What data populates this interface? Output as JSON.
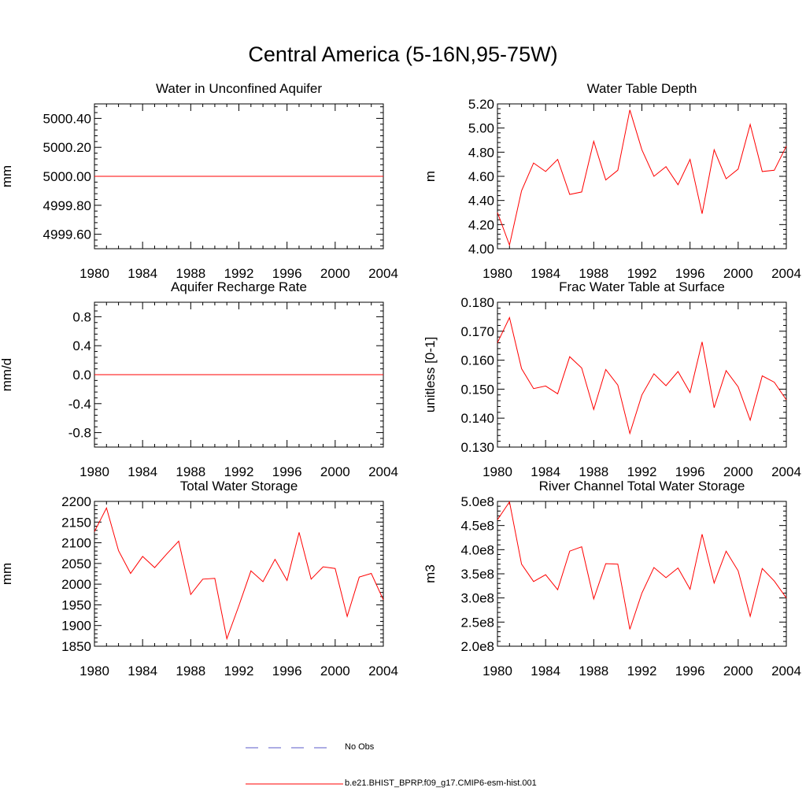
{
  "figure": {
    "title": "Central America (5-16N,95-75W)",
    "series_color": "#ff0000",
    "obs_color": "#5a5ac8"
  },
  "legend": {
    "obs_label": "No Obs",
    "model_label": "b.e21.BHIST_BPRP.f09_g17.CMIP6-esm-hist.001"
  },
  "chart_data": [
    {
      "type": "line",
      "title": "Water in Unconfined Aquifer",
      "xlabel": "",
      "ylabel": "mm",
      "xlim": [
        1980,
        2004
      ],
      "ylim": [
        4999.5,
        5000.5
      ],
      "xticks": [
        1980,
        1984,
        1988,
        1992,
        1996,
        2000,
        2004
      ],
      "xtick_labels": [
        "1980",
        "1984",
        "1988",
        "1992",
        "1996",
        "2000",
        "2004"
      ],
      "yticks": [
        4999.6,
        4999.8,
        5000.0,
        5000.2,
        5000.4
      ],
      "ytick_labels": [
        "4999.60",
        "4999.80",
        "5000.00",
        "5000.20",
        "5000.40"
      ],
      "x": [
        1980,
        1981,
        1982,
        1983,
        1984,
        1985,
        1986,
        1987,
        1988,
        1989,
        1990,
        1991,
        1992,
        1993,
        1994,
        1995,
        1996,
        1997,
        1998,
        1999,
        2000,
        2001,
        2002,
        2003,
        2004
      ],
      "values": [
        5000,
        5000,
        5000,
        5000,
        5000,
        5000,
        5000,
        5000,
        5000,
        5000,
        5000,
        5000,
        5000,
        5000,
        5000,
        5000,
        5000,
        5000,
        5000,
        5000,
        5000,
        5000,
        5000,
        5000,
        5000
      ]
    },
    {
      "type": "line",
      "title": "Water Table Depth",
      "xlabel": "",
      "ylabel": "m",
      "xlim": [
        1980,
        2004
      ],
      "ylim": [
        4.0,
        5.2
      ],
      "xticks": [
        1980,
        1984,
        1988,
        1992,
        1996,
        2000,
        2004
      ],
      "xtick_labels": [
        "1980",
        "1984",
        "1988",
        "1992",
        "1996",
        "2000",
        "2004"
      ],
      "yticks": [
        4.0,
        4.2,
        4.4,
        4.6,
        4.8,
        5.0,
        5.2
      ],
      "ytick_labels": [
        "4.00",
        "4.20",
        "4.40",
        "4.60",
        "4.80",
        "5.00",
        "5.20"
      ],
      "x": [
        1980,
        1981,
        1982,
        1983,
        1984,
        1985,
        1986,
        1987,
        1988,
        1989,
        1990,
        1991,
        1992,
        1993,
        1994,
        1995,
        1996,
        1997,
        1998,
        1999,
        2000,
        2001,
        2002,
        2003,
        2004
      ],
      "values": [
        4.3,
        4.03,
        4.48,
        4.71,
        4.64,
        4.74,
        4.45,
        4.47,
        4.89,
        4.57,
        4.65,
        5.15,
        4.82,
        4.6,
        4.68,
        4.53,
        4.74,
        4.29,
        4.82,
        4.58,
        4.66,
        5.03,
        4.64,
        4.65,
        4.85
      ]
    },
    {
      "type": "line",
      "title": "Aquifer Recharge Rate",
      "xlabel": "",
      "ylabel": "mm/d",
      "xlim": [
        1980,
        2004
      ],
      "ylim": [
        -1.0,
        1.0
      ],
      "xticks": [
        1980,
        1984,
        1988,
        1992,
        1996,
        2000,
        2004
      ],
      "xtick_labels": [
        "1980",
        "1984",
        "1988",
        "1992",
        "1996",
        "2000",
        "2004"
      ],
      "yticks": [
        -0.8,
        -0.4,
        0.0,
        0.4,
        0.8
      ],
      "ytick_labels": [
        "-0.8",
        "-0.4",
        "0.0",
        "0.4",
        "0.8"
      ],
      "x": [
        1980,
        1981,
        1982,
        1983,
        1984,
        1985,
        1986,
        1987,
        1988,
        1989,
        1990,
        1991,
        1992,
        1993,
        1994,
        1995,
        1996,
        1997,
        1998,
        1999,
        2000,
        2001,
        2002,
        2003,
        2004
      ],
      "values": [
        0,
        0,
        0,
        0,
        0,
        0,
        0,
        0,
        0,
        0,
        0,
        0,
        0,
        0,
        0,
        0,
        0,
        0,
        0,
        0,
        0,
        0,
        0,
        0,
        0
      ]
    },
    {
      "type": "line",
      "title": "Frac Water Table at Surface",
      "xlabel": "",
      "ylabel": "unitless [0-1]",
      "xlim": [
        1980,
        2004
      ],
      "ylim": [
        0.13,
        0.18
      ],
      "xticks": [
        1980,
        1984,
        1988,
        1992,
        1996,
        2000,
        2004
      ],
      "xtick_labels": [
        "1980",
        "1984",
        "1988",
        "1992",
        "1996",
        "2000",
        "2004"
      ],
      "yticks": [
        0.13,
        0.14,
        0.15,
        0.16,
        0.17,
        0.18
      ],
      "ytick_labels": [
        "0.130",
        "0.140",
        "0.150",
        "0.160",
        "0.170",
        "0.180"
      ],
      "x": [
        1980,
        1981,
        1982,
        1983,
        1984,
        1985,
        1986,
        1987,
        1988,
        1989,
        1990,
        1991,
        1992,
        1993,
        1994,
        1995,
        1996,
        1997,
        1998,
        1999,
        2000,
        2001,
        2002,
        2003,
        2004
      ],
      "values": [
        0.166,
        0.1747,
        0.1571,
        0.1502,
        0.1511,
        0.1484,
        0.1612,
        0.1573,
        0.143,
        0.1568,
        0.1514,
        0.1347,
        0.148,
        0.1553,
        0.1512,
        0.1561,
        0.1488,
        0.1663,
        0.1436,
        0.1564,
        0.1508,
        0.1393,
        0.1546,
        0.1524,
        0.1463
      ]
    },
    {
      "type": "line",
      "title": "Total Water Storage",
      "xlabel": "",
      "ylabel": "mm",
      "xlim": [
        1980,
        2004
      ],
      "ylim": [
        1850,
        2200
      ],
      "xticks": [
        1980,
        1984,
        1988,
        1992,
        1996,
        2000,
        2004
      ],
      "xtick_labels": [
        "1980",
        "1984",
        "1988",
        "1992",
        "1996",
        "2000",
        "2004"
      ],
      "yticks": [
        1850,
        1900,
        1950,
        2000,
        2050,
        2100,
        2150,
        2200
      ],
      "ytick_labels": [
        "1850",
        "1900",
        "1950",
        "2000",
        "2050",
        "2100",
        "2150",
        "2200"
      ],
      "x": [
        1980,
        1981,
        1982,
        1983,
        1984,
        1985,
        1986,
        1987,
        1988,
        1989,
        1990,
        1991,
        1992,
        1993,
        1994,
        1995,
        1996,
        1997,
        1998,
        1999,
        2000,
        2001,
        2002,
        2003,
        2004
      ],
      "values": [
        2127,
        2184,
        2081,
        2026,
        2067,
        2040,
        2073,
        2104,
        1975,
        2012,
        2014,
        1868,
        1948,
        2032,
        2006,
        2060,
        2009,
        2125,
        2012,
        2042,
        2038,
        1922,
        2017,
        2026,
        1962
      ]
    },
    {
      "type": "line",
      "title": "River Channel Total Water Storage",
      "xlabel": "",
      "ylabel": "m3",
      "xlim": [
        1980,
        2004
      ],
      "ylim": [
        200000000.0,
        500000000.0
      ],
      "xticks": [
        1980,
        1984,
        1988,
        1992,
        1996,
        2000,
        2004
      ],
      "xtick_labels": [
        "1980",
        "1984",
        "1988",
        "1992",
        "1996",
        "2000",
        "2004"
      ],
      "yticks": [
        200000000.0,
        250000000.0,
        300000000.0,
        350000000.0,
        400000000.0,
        450000000.0,
        500000000.0
      ],
      "ytick_labels": [
        "2.0e8",
        "2.5e8",
        "3.0e8",
        "3.5e8",
        "4.0e8",
        "4.5e8",
        "5.0e8"
      ],
      "x": [
        1980,
        1981,
        1982,
        1983,
        1984,
        1985,
        1986,
        1987,
        1988,
        1989,
        1990,
        1991,
        1992,
        1993,
        1994,
        1995,
        1996,
        1997,
        1998,
        1999,
        2000,
        2001,
        2002,
        2003,
        2004
      ],
      "values": [
        462000000.0,
        499000000.0,
        370000000.0,
        334000000.0,
        348000000.0,
        317000000.0,
        397000000.0,
        406000000.0,
        298000000.0,
        371000000.0,
        370000000.0,
        235000000.0,
        310000000.0,
        363000000.0,
        342000000.0,
        362000000.0,
        318000000.0,
        432000000.0,
        331000000.0,
        397000000.0,
        356000000.0,
        262000000.0,
        361000000.0,
        335000000.0,
        300000000.0
      ]
    }
  ]
}
